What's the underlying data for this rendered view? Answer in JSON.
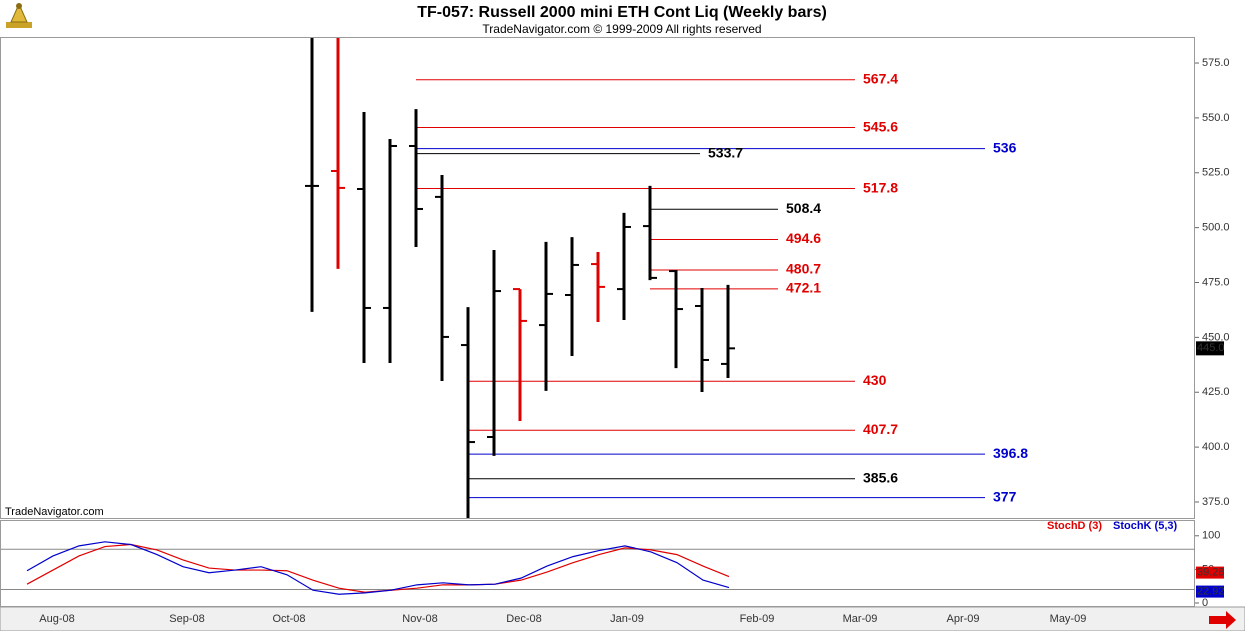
{
  "chart_data": [
    {
      "type": "ohlc",
      "title": "TF-057:  Russell 2000 mini ETH Cont Liq  (Weekly bars)",
      "subtitle": "TradeNavigator.com © 1999-2009 All rights reserved",
      "annotation": "TradeNavigator.com",
      "ylim": [
        367.7,
        586.4
      ],
      "yticks": [
        {
          "value": 375,
          "label": "375.0"
        },
        {
          "value": 400,
          "label": "400.0"
        },
        {
          "value": 425,
          "label": "425.0"
        },
        {
          "value": 450,
          "label": "450.0"
        },
        {
          "value": 475,
          "label": "475.0"
        },
        {
          "value": 500,
          "label": "500.0"
        },
        {
          "value": 525,
          "label": "525.0"
        },
        {
          "value": 550,
          "label": "550.0"
        },
        {
          "value": 575,
          "label": "575.0"
        }
      ],
      "bars": [
        {
          "open": 519,
          "high": 586.4,
          "low": 461.6,
          "close": 519,
          "color": "#000000"
        },
        {
          "open": 525.8,
          "high": 586.4,
          "low": 481.2,
          "close": 518.1,
          "color": "#e00000"
        },
        {
          "open": 517.6,
          "high": 552.7,
          "low": 438.3,
          "close": 463.4,
          "color": "#000000"
        },
        {
          "open": 463.4,
          "high": 540.4,
          "low": 438.3,
          "close": 537.2,
          "color": "#000000"
        },
        {
          "open": 537.2,
          "high": 554.0,
          "low": 491.2,
          "close": 508.5,
          "color": "#000000"
        },
        {
          "open": 514.0,
          "high": 524.0,
          "low": 430.1,
          "close": 450.2,
          "color": "#000000"
        },
        {
          "open": 446.5,
          "high": 463.8,
          "low": 367.7,
          "close": 402.3,
          "color": "#000000"
        },
        {
          "open": 404.6,
          "high": 489.8,
          "low": 396.0,
          "close": 471.1,
          "color": "#000000"
        },
        {
          "open": 472.0,
          "high": 472.0,
          "low": 411.9,
          "close": 457.5,
          "color": "#e00000"
        },
        {
          "open": 455.6,
          "high": 493.5,
          "low": 425.6,
          "close": 469.8,
          "color": "#000000"
        },
        {
          "open": 469.3,
          "high": 495.7,
          "low": 441.5,
          "close": 483.0,
          "color": "#000000"
        },
        {
          "open": 483.4,
          "high": 488.9,
          "low": 457.0,
          "close": 473.0,
          "color": "#e00000"
        },
        {
          "open": 472.0,
          "high": 506.7,
          "low": 457.9,
          "close": 500.3,
          "color": "#000000"
        },
        {
          "open": 500.7,
          "high": 519.0,
          "low": 476.1,
          "close": 477.1,
          "color": "#000000"
        },
        {
          "open": 480.2,
          "high": 480.7,
          "low": 436.0,
          "close": 462.9,
          "color": "#000000"
        },
        {
          "open": 464.3,
          "high": 472.5,
          "low": 425.1,
          "close": 439.7,
          "color": "#000000"
        },
        {
          "open": 437.9,
          "high": 473.9,
          "low": 431.5,
          "close": 445,
          "color": "#000000"
        }
      ],
      "last_price": {
        "value": 445,
        "label": "445.0"
      },
      "levels": [
        {
          "value": 567.4,
          "color": "#e00000"
        },
        {
          "value": 545.6,
          "color": "#e00000"
        },
        {
          "value": 536.0,
          "color": "#0000cc"
        },
        {
          "value": 533.7,
          "color": "#000000"
        },
        {
          "value": 517.8,
          "color": "#e00000"
        },
        {
          "value": 508.4,
          "color": "#000000"
        },
        {
          "value": 494.6,
          "color": "#e00000"
        },
        {
          "value": 480.7,
          "color": "#e00000"
        },
        {
          "value": 472.1,
          "color": "#e00000"
        },
        {
          "value": 430.0,
          "color": "#e00000"
        },
        {
          "value": 407.7,
          "color": "#e00000"
        },
        {
          "value": 396.8,
          "color": "#0000cc"
        },
        {
          "value": 385.6,
          "color": "#000000"
        },
        {
          "value": 377.0,
          "color": "#0000cc"
        }
      ]
    },
    {
      "type": "line",
      "ylim": [
        -3,
        122
      ],
      "yticks": [
        0,
        50,
        100
      ],
      "bands": [
        20,
        80
      ],
      "x_labels": [
        "Aug-08",
        "Sep-08",
        "Oct-08",
        "Nov-08",
        "Dec-08",
        "Jan-09",
        "Feb-09",
        "Mar-09",
        "Apr-09",
        "May-09"
      ],
      "series": [
        {
          "name": "StochD (3)",
          "color": "#e00000",
          "values": [
            28,
            49,
            70,
            84,
            87,
            79,
            64,
            52,
            49,
            49,
            48,
            34,
            22,
            16,
            19,
            22,
            27,
            27,
            28,
            34,
            46,
            60,
            72,
            82,
            79,
            72,
            55,
            39.28
          ]
        },
        {
          "name": "StochK (5,3)",
          "color": "#0000cc",
          "values": [
            48,
            70,
            85,
            91,
            87,
            72,
            54,
            45,
            49,
            54,
            42,
            19,
            13,
            15,
            19,
            27,
            30,
            27,
            28,
            37,
            55,
            69,
            78,
            85,
            76,
            60,
            34,
            22.92
          ]
        }
      ]
    }
  ]
}
